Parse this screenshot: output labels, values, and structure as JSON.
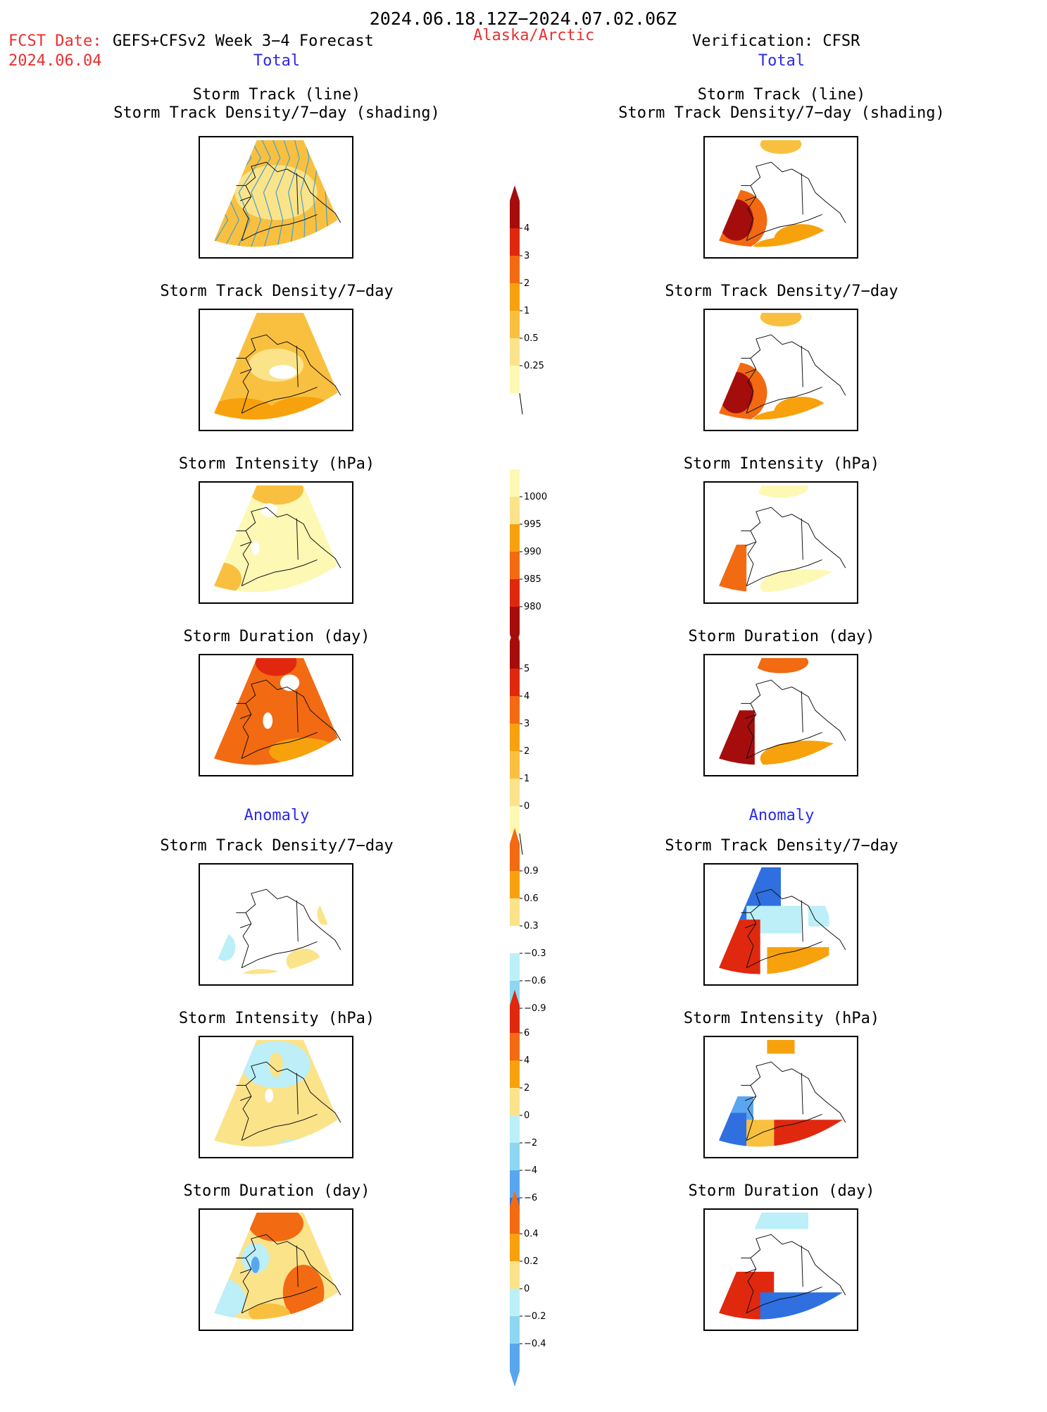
{
  "header": {
    "period": "2024.06.18.12Z−2024.07.02.06Z",
    "fcst_label": "FCST Date:",
    "fcst_date": "2024.06.04",
    "model": "GEFS+CFSv2 Week 3−4 Forecast",
    "region": "Alaska/Arctic",
    "verification": "Verification: CFSR",
    "left_total": "Total",
    "right_total": "Total",
    "left_anomaly": "Anomaly",
    "right_anomaly": "Anomaly"
  },
  "panel_titles": {
    "track_line": "Storm Track (line)",
    "track_shading": "Storm Track Density/7−day (shading)",
    "density": "Storm Track Density/7−day",
    "intensity": "Storm Intensity (hPa)",
    "duration": "Storm Duration (day)"
  },
  "colorbars": {
    "density_total": [
      "4",
      "3",
      "2",
      "1",
      "0.5",
      "0.25"
    ],
    "intensity_total": [
      "1000",
      "995",
      "990",
      "985",
      "980"
    ],
    "duration_total": [
      "5",
      "4",
      "3",
      "2",
      "1",
      "0"
    ],
    "density_anom": [
      "0.9",
      "0.6",
      "0.3",
      "−0.3",
      "−0.6",
      "−0.9"
    ],
    "intensity_anom": [
      "6",
      "4",
      "2",
      "0",
      "−2",
      "−4",
      "−6"
    ],
    "duration_anom": [
      "0.4",
      "0.2",
      "0",
      "−0.2",
      "−0.4"
    ]
  },
  "colors": {
    "warm": [
      "#fdf8b4",
      "#fbe38a",
      "#f9c040",
      "#f7a10c",
      "#f26a12",
      "#e0280f",
      "#a50d0d"
    ],
    "cool": [
      "#ffffff",
      "#bceff7",
      "#8ed7f2",
      "#5aa6ee",
      "#2f6fe0",
      "#1347c9"
    ],
    "track_line": "#4aa3c9"
  }
}
